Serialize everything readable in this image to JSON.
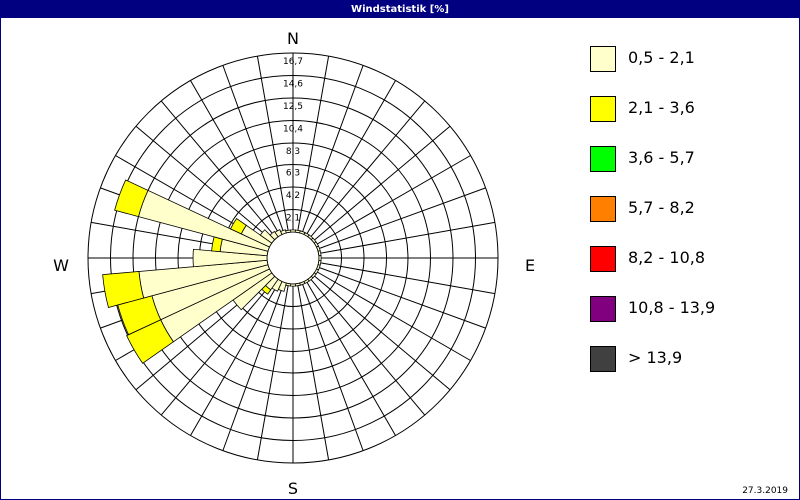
{
  "window": {
    "title": "Windstatistik [%]",
    "date": "27.3.2019"
  },
  "colors": [
    "#ffffcc",
    "#ffff00",
    "#00ff00",
    "#ff8000",
    "#ff0000",
    "#800080",
    "#404040"
  ],
  "chart_data": {
    "type": "wind-rose",
    "title": "Windstatistik [%]",
    "unit": "%",
    "directions_labels": [
      "N",
      "E",
      "S",
      "W"
    ],
    "rings": [
      "2,1",
      "4,2",
      "6,3",
      "8,3",
      "10,4",
      "12,5",
      "14,6",
      "16,7"
    ],
    "r_max": 16.7,
    "classes": [
      "0,5 - 2,1",
      "2,1 - 3,6",
      "3,6 - 5,7",
      "5,7 - 8,2",
      "8,2 - 10,8",
      "10,8 - 13,9",
      "> 13,9"
    ],
    "directions": [
      0,
      10,
      20,
      30,
      40,
      50,
      60,
      70,
      80,
      90,
      100,
      110,
      120,
      130,
      140,
      150,
      160,
      170,
      180,
      190,
      200,
      210,
      220,
      230,
      240,
      250,
      260,
      270,
      280,
      290,
      300,
      310,
      320,
      330,
      340,
      350
    ],
    "series": [
      {
        "name": "0,5 - 2,1",
        "values": [
          0.2,
          0.2,
          0.2,
          0.2,
          0.2,
          0.2,
          0.2,
          0.2,
          0.2,
          0.2,
          0.2,
          0.2,
          0.2,
          0.2,
          0.2,
          0.2,
          0.2,
          0.2,
          0.2,
          0.2,
          0.8,
          1.0,
          1.2,
          4.4,
          11.2,
          11.2,
          12.0,
          6.9,
          4.4,
          12.5,
          2.9,
          1.3,
          0.6,
          0.5,
          0.3,
          0.2
        ]
      },
      {
        "name": "2,1 - 3,6",
        "values": [
          0,
          0,
          0,
          0,
          0,
          0,
          0,
          0,
          0,
          0,
          0,
          0,
          0,
          0,
          0,
          0,
          0,
          0,
          0,
          0,
          0,
          0,
          0.5,
          0,
          3.5,
          3.3,
          3.4,
          0,
          0.8,
          2.3,
          1.1,
          0,
          0,
          0,
          0,
          0
        ]
      },
      {
        "name": "3,6 - 5,7",
        "values": [
          0,
          0,
          0,
          0,
          0,
          0,
          0,
          0,
          0,
          0,
          0,
          0,
          0,
          0,
          0,
          0,
          0,
          0,
          0,
          0,
          0,
          0,
          0,
          0,
          0,
          0,
          0,
          0,
          0,
          0,
          0,
          0,
          0,
          0,
          0,
          0
        ]
      },
      {
        "name": "5,7 - 8,2",
        "values": [
          0,
          0,
          0,
          0,
          0,
          0,
          0,
          0,
          0,
          0,
          0,
          0,
          0,
          0,
          0,
          0,
          0,
          0,
          0,
          0,
          0,
          0,
          0,
          0,
          0,
          0,
          0,
          0,
          0,
          0,
          0,
          0,
          0,
          0,
          0,
          0
        ]
      },
      {
        "name": "8,2 - 10,8",
        "values": [
          0,
          0,
          0,
          0,
          0,
          0,
          0,
          0,
          0,
          0,
          0,
          0,
          0,
          0,
          0,
          0,
          0,
          0,
          0,
          0,
          0,
          0,
          0,
          0,
          0,
          0,
          0,
          0,
          0,
          0,
          0,
          0,
          0,
          0,
          0,
          0
        ]
      },
      {
        "name": "10,8 - 13,9",
        "values": [
          0,
          0,
          0,
          0,
          0,
          0,
          0,
          0,
          0,
          0,
          0,
          0,
          0,
          0,
          0,
          0,
          0,
          0,
          0,
          0,
          0,
          0,
          0,
          0,
          0,
          0,
          0,
          0,
          0,
          0,
          0,
          0,
          0,
          0,
          0,
          0
        ]
      },
      {
        "name": "> 13,9",
        "values": [
          0,
          0,
          0,
          0,
          0,
          0,
          0,
          0,
          0,
          0,
          0,
          0,
          0,
          0,
          0,
          0,
          0,
          0,
          0,
          0,
          0,
          0,
          0,
          0,
          0,
          0,
          0,
          0,
          0,
          0,
          0,
          0,
          0,
          0,
          0,
          0
        ]
      }
    ],
    "grid": true,
    "legend": "right"
  }
}
